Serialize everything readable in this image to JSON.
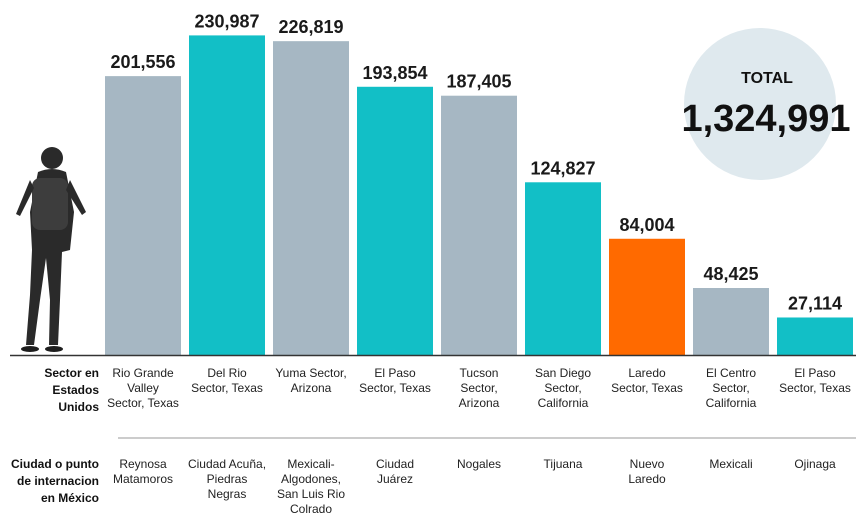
{
  "chart_data": {
    "type": "bar",
    "categories": [
      "Rio Grande Valley Sector, Texas",
      "Del Rio Sector, Texas",
      "Yuma Sector, Arizona",
      "El Paso Sector, Texas",
      "Tucson Sector, Arizona",
      "San Diego Sector, California",
      "Laredo Sector, Texas",
      "El Centro Sector, California",
      "El Paso Sector, Texas"
    ],
    "category_lines": [
      [
        "Rio Grande",
        "Valley",
        "Sector, Texas"
      ],
      [
        "Del Rio",
        "Sector, Texas"
      ],
      [
        "Yuma Sector,",
        "Arizona"
      ],
      [
        "El Paso",
        "Sector, Texas"
      ],
      [
        "Tucson",
        "Sector,",
        "Arizona"
      ],
      [
        "San Diego",
        "Sector,",
        "California"
      ],
      [
        "Laredo",
        "Sector, Texas"
      ],
      [
        "El Centro",
        "Sector,",
        "California"
      ],
      [
        "El Paso",
        "Sector, Texas"
      ]
    ],
    "mexico_points": [
      [
        "Reynosa",
        "Matamoros"
      ],
      [
        "Ciudad Acuña,",
        "Piedras",
        "Negras"
      ],
      [
        "Mexicali-",
        "Algodones,",
        "San Luis Rio",
        "Colrado"
      ],
      [
        "Ciudad",
        "Juárez"
      ],
      [
        "Nogales"
      ],
      [
        "Tijuana"
      ],
      [
        "Nuevo",
        "Laredo"
      ],
      [
        "Mexicali"
      ],
      [
        "Ojinaga"
      ]
    ],
    "values": [
      201556,
      230987,
      226819,
      193854,
      187405,
      124827,
      84004,
      48425,
      27114
    ],
    "value_labels": [
      "201,556",
      "230,987",
      "226,819",
      "193,854",
      "187,405",
      "124,827",
      "84,004",
      "48,425",
      "27,114"
    ],
    "bar_colors": [
      "#a6b7c3",
      "#12bfc6",
      "#a6b7c3",
      "#12bfc6",
      "#a6b7c3",
      "#12bfc6",
      "#ff6a00",
      "#a6b7c3",
      "#12bfc6"
    ],
    "ylim": [
      0,
      232000
    ],
    "row_label_us": [
      "Sector en",
      "Estados",
      "Unidos"
    ],
    "row_label_mx": [
      "Ciudad o punto",
      "de internacion",
      "en México"
    ],
    "total_label": "TOTAL",
    "total_value": "1,324,991",
    "colors": {
      "total_circle": "#dfe9ee",
      "baseline": "#333333",
      "separator": "#999999",
      "silhouette": "#2a2a2a"
    },
    "icon": "walking-migrant-silhouette-icon"
  }
}
